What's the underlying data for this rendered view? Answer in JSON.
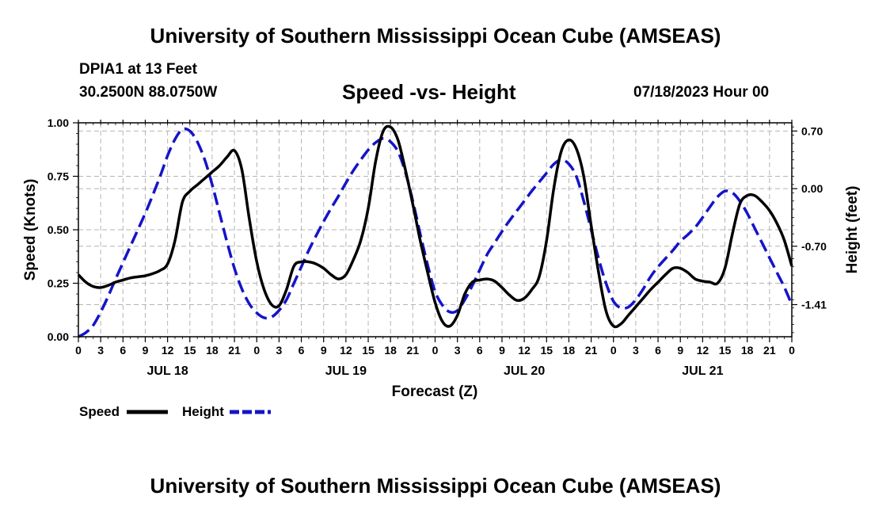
{
  "header": {
    "title": "University of Southern Mississippi Ocean Cube (AMSEAS)",
    "station": "DPIA1 at 13 Feet",
    "coords": "30.2500N  88.0750W",
    "subtitle": "Speed -vs- Height",
    "datetime": "07/18/2023 Hour 00"
  },
  "footer": {
    "title": "University of Southern Mississippi Ocean Cube (AMSEAS)"
  },
  "legend": {
    "speed_label": "Speed",
    "height_label": "Height"
  },
  "colors": {
    "speed": "#000000",
    "height": "#1414c8",
    "grid": "#b4b4b4"
  },
  "chart_data": {
    "type": "line",
    "title": "Speed -vs- Height",
    "xlabel": "Forecast (Z)",
    "ylabel": "Speed (Knots)",
    "y2label": "Height (feet)",
    "xlim": [
      0,
      96
    ],
    "ylim": [
      0,
      1
    ],
    "y2lim": [
      -1.8,
      0.8
    ],
    "x_ticks": [
      0,
      3,
      6,
      9,
      12,
      15,
      18,
      21,
      24,
      27,
      30,
      33,
      36,
      39,
      42,
      45,
      48,
      51,
      54,
      57,
      60,
      63,
      66,
      69,
      72,
      75,
      78,
      81,
      84,
      87,
      90,
      93,
      96
    ],
    "x_tick_labels": [
      "0",
      "3",
      "6",
      "9",
      "12",
      "15",
      "18",
      "21",
      "0",
      "3",
      "6",
      "9",
      "12",
      "15",
      "18",
      "21",
      "0",
      "3",
      "6",
      "9",
      "12",
      "15",
      "18",
      "21",
      "0",
      "3",
      "6",
      "9",
      "12",
      "15",
      "18",
      "21",
      "0"
    ],
    "day_labels": [
      {
        "x": 12,
        "label": "JUL 18"
      },
      {
        "x": 36,
        "label": "JUL 19"
      },
      {
        "x": 60,
        "label": "JUL 20"
      },
      {
        "x": 84,
        "label": "JUL 21"
      }
    ],
    "y_ticks": [
      0,
      0.25,
      0.5,
      0.75,
      1.0
    ],
    "y_tick_labels": [
      "0.00",
      "0.25",
      "0.50",
      "0.75",
      "1.00"
    ],
    "y2_ticks": [
      0.7,
      0.0,
      -0.7,
      -1.41
    ],
    "y2_tick_labels": [
      "0.70",
      "0.00",
      "-0.70",
      "-1.41"
    ],
    "series": [
      {
        "name": "Speed",
        "axis": "left",
        "style": "solid",
        "x": [
          0,
          1,
          2,
          3,
          4,
          5,
          6,
          7,
          8,
          9,
          10,
          11,
          12,
          13,
          14,
          15,
          16,
          17,
          18,
          19,
          20,
          21,
          22,
          23,
          24,
          25,
          26,
          27,
          28,
          29,
          30,
          31,
          32,
          33,
          34,
          35,
          36,
          37,
          38,
          39,
          40,
          41,
          42,
          43,
          44,
          45,
          46,
          47,
          48,
          49,
          50,
          51,
          52,
          53,
          54,
          55,
          56,
          57,
          58,
          59,
          60,
          61,
          62,
          63,
          64,
          65,
          66,
          67,
          68,
          69,
          70,
          71,
          72,
          73,
          74,
          75,
          76,
          77,
          78,
          79,
          80,
          81,
          82,
          83,
          84,
          85,
          86,
          87,
          88,
          89,
          90,
          91,
          92,
          93,
          94,
          95,
          96
        ],
        "values": [
          0.29,
          0.255,
          0.235,
          0.23,
          0.24,
          0.255,
          0.265,
          0.275,
          0.28,
          0.285,
          0.295,
          0.31,
          0.34,
          0.45,
          0.63,
          0.68,
          0.71,
          0.74,
          0.77,
          0.8,
          0.84,
          0.87,
          0.78,
          0.55,
          0.35,
          0.22,
          0.15,
          0.145,
          0.22,
          0.33,
          0.35,
          0.35,
          0.34,
          0.32,
          0.29,
          0.27,
          0.29,
          0.36,
          0.45,
          0.6,
          0.82,
          0.96,
          0.98,
          0.92,
          0.78,
          0.62,
          0.45,
          0.3,
          0.16,
          0.07,
          0.05,
          0.1,
          0.2,
          0.255,
          0.265,
          0.27,
          0.26,
          0.23,
          0.195,
          0.17,
          0.18,
          0.22,
          0.28,
          0.45,
          0.7,
          0.87,
          0.92,
          0.88,
          0.75,
          0.52,
          0.3,
          0.12,
          0.05,
          0.06,
          0.1,
          0.14,
          0.18,
          0.22,
          0.255,
          0.29,
          0.32,
          0.32,
          0.3,
          0.27,
          0.26,
          0.255,
          0.25,
          0.32,
          0.48,
          0.62,
          0.66,
          0.66,
          0.63,
          0.59,
          0.53,
          0.45,
          0.33
        ]
      },
      {
        "name": "Height",
        "axis": "right",
        "style": "dashed",
        "x": [
          0,
          1,
          2,
          3,
          4,
          5,
          6,
          7,
          8,
          9,
          10,
          11,
          12,
          13,
          14,
          15,
          16,
          17,
          18,
          19,
          20,
          21,
          22,
          23,
          24,
          25,
          26,
          27,
          28,
          29,
          30,
          31,
          32,
          33,
          34,
          35,
          36,
          37,
          38,
          39,
          40,
          41,
          42,
          43,
          44,
          45,
          46,
          47,
          48,
          49,
          50,
          51,
          52,
          53,
          54,
          55,
          56,
          57,
          58,
          59,
          60,
          61,
          62,
          63,
          64,
          65,
          66,
          67,
          68,
          69,
          70,
          71,
          72,
          73,
          74,
          75,
          76,
          77,
          78,
          79,
          80,
          81,
          82,
          83,
          84,
          85,
          86,
          87,
          88,
          89,
          90,
          91,
          92,
          93,
          94,
          95,
          96
        ],
        "values": [
          -1.8,
          -1.75,
          -1.66,
          -1.5,
          -1.31,
          -1.1,
          -0.9,
          -0.7,
          -0.5,
          -0.3,
          -0.08,
          0.15,
          0.4,
          0.6,
          0.72,
          0.7,
          0.57,
          0.35,
          0.05,
          -0.3,
          -0.65,
          -0.97,
          -1.22,
          -1.4,
          -1.51,
          -1.57,
          -1.56,
          -1.48,
          -1.35,
          -1.15,
          -0.95,
          -0.75,
          -0.57,
          -0.4,
          -0.24,
          -0.09,
          0.07,
          0.22,
          0.35,
          0.47,
          0.56,
          0.61,
          0.57,
          0.45,
          0.2,
          -0.15,
          -0.55,
          -0.93,
          -1.25,
          -1.42,
          -1.5,
          -1.48,
          -1.35,
          -1.18,
          -0.99,
          -0.8,
          -0.66,
          -0.52,
          -0.39,
          -0.27,
          -0.15,
          -0.03,
          0.08,
          0.19,
          0.3,
          0.35,
          0.3,
          0.15,
          -0.15,
          -0.5,
          -0.85,
          -1.15,
          -1.37,
          -1.45,
          -1.44,
          -1.35,
          -1.22,
          -1.07,
          -0.95,
          -0.85,
          -0.75,
          -0.64,
          -0.56,
          -0.47,
          -0.35,
          -0.22,
          -0.1,
          -0.03,
          -0.05,
          -0.15,
          -0.3,
          -0.48,
          -0.66,
          -0.84,
          -1.02,
          -1.2,
          -1.41
        ]
      }
    ]
  }
}
